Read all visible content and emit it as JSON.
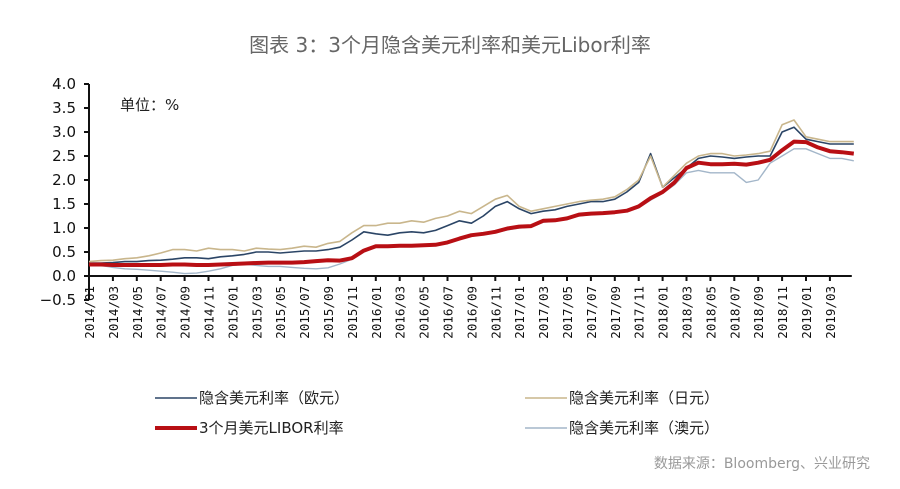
{
  "chart_data": {
    "type": "line",
    "title": "图表 3：3个月隐含美元利率和美元Libor利率",
    "unit_label": "单位：%",
    "source": "数据来源：Bloomberg、兴业研究",
    "ylim": [
      -0.5,
      4.0
    ],
    "yticks": [
      "4.0",
      "3.5",
      "3.0",
      "2.5",
      "2.0",
      "1.5",
      "1.0",
      "0.5",
      "0.0",
      "-0.5"
    ],
    "x_start": "2014/01",
    "x_end": "2019/05",
    "xticks": [
      "2014/01",
      "2014/03",
      "2014/05",
      "2014/07",
      "2014/09",
      "2014/11",
      "2015/01",
      "2015/03",
      "2015/05",
      "2015/07",
      "2015/09",
      "2015/11",
      "2016/01",
      "2016/03",
      "2016/05",
      "2016/07",
      "2016/09",
      "2016/11",
      "2017/01",
      "2017/03",
      "2017/05",
      "2017/07",
      "2017/09",
      "2017/11",
      "2018/01",
      "2018/03",
      "2018/05",
      "2018/07",
      "2018/09",
      "2018/11",
      "2019/01",
      "2019/03"
    ],
    "grid": false,
    "legend_position": "bottom",
    "series": [
      {
        "name": "隐含美元利率（欧元）",
        "color": "#2b4566",
        "width": 1.6,
        "values": [
          0.27,
          0.27,
          0.28,
          0.3,
          0.3,
          0.32,
          0.33,
          0.35,
          0.38,
          0.38,
          0.36,
          0.4,
          0.42,
          0.45,
          0.5,
          0.5,
          0.48,
          0.5,
          0.52,
          0.52,
          0.55,
          0.6,
          0.75,
          0.92,
          0.88,
          0.85,
          0.9,
          0.92,
          0.9,
          0.95,
          1.05,
          1.15,
          1.1,
          1.25,
          1.45,
          1.55,
          1.4,
          1.3,
          1.35,
          1.38,
          1.45,
          1.5,
          1.55,
          1.55,
          1.6,
          1.75,
          1.95,
          2.55,
          1.85,
          2.05,
          2.25,
          2.45,
          2.5,
          2.48,
          2.45,
          2.48,
          2.5,
          2.5,
          3.0,
          3.1,
          2.85,
          2.8,
          2.75,
          2.75,
          2.75
        ]
      },
      {
        "name": "隐含美元利率（日元）",
        "color": "#c9b68c",
        "width": 1.6,
        "values": [
          0.3,
          0.32,
          0.33,
          0.36,
          0.38,
          0.42,
          0.48,
          0.55,
          0.55,
          0.52,
          0.58,
          0.55,
          0.55,
          0.52,
          0.58,
          0.56,
          0.55,
          0.58,
          0.62,
          0.6,
          0.68,
          0.72,
          0.9,
          1.05,
          1.05,
          1.1,
          1.1,
          1.15,
          1.12,
          1.2,
          1.25,
          1.35,
          1.3,
          1.45,
          1.6,
          1.68,
          1.45,
          1.35,
          1.4,
          1.45,
          1.5,
          1.55,
          1.58,
          1.6,
          1.65,
          1.8,
          2.0,
          2.5,
          1.85,
          2.1,
          2.35,
          2.5,
          2.55,
          2.55,
          2.5,
          2.52,
          2.55,
          2.6,
          3.15,
          3.25,
          2.9,
          2.85,
          2.8,
          2.8,
          2.8
        ]
      },
      {
        "name": "隐含美元利率（澳元）",
        "color": "#a3b6c9",
        "width": 1.4,
        "values": [
          0.25,
          0.22,
          0.18,
          0.15,
          0.14,
          0.12,
          0.1,
          0.08,
          0.05,
          0.06,
          0.1,
          0.15,
          0.22,
          0.25,
          0.22,
          0.2,
          0.2,
          0.18,
          0.16,
          0.15,
          0.17,
          0.25,
          0.35,
          0.5,
          0.6,
          0.6,
          0.62,
          0.62,
          0.63,
          0.64,
          0.68,
          0.76,
          0.83,
          0.86,
          0.9,
          0.96,
          1.0,
          1.02,
          1.12,
          1.14,
          1.18,
          1.25,
          1.28,
          1.29,
          1.31,
          1.34,
          1.42,
          1.58,
          1.72,
          1.9,
          2.15,
          2.2,
          2.15,
          2.15,
          2.15,
          1.95,
          2.0,
          2.35,
          2.5,
          2.65,
          2.65,
          2.55,
          2.45,
          2.45,
          2.4
        ]
      },
      {
        "name": "3个月美元LIBOR利率",
        "color": "#b80f14",
        "width": 4,
        "values": [
          0.24,
          0.24,
          0.23,
          0.23,
          0.23,
          0.23,
          0.23,
          0.24,
          0.24,
          0.23,
          0.23,
          0.24,
          0.25,
          0.26,
          0.27,
          0.28,
          0.28,
          0.28,
          0.29,
          0.31,
          0.33,
          0.32,
          0.37,
          0.53,
          0.62,
          0.62,
          0.63,
          0.63,
          0.64,
          0.65,
          0.7,
          0.78,
          0.85,
          0.88,
          0.92,
          0.99,
          1.03,
          1.04,
          1.15,
          1.16,
          1.2,
          1.28,
          1.3,
          1.31,
          1.33,
          1.36,
          1.45,
          1.62,
          1.75,
          1.95,
          2.25,
          2.36,
          2.33,
          2.33,
          2.34,
          2.32,
          2.36,
          2.42,
          2.62,
          2.8,
          2.79,
          2.68,
          2.6,
          2.58,
          2.55
        ]
      }
    ],
    "legend_order": [
      0,
      1,
      3,
      2
    ]
  }
}
